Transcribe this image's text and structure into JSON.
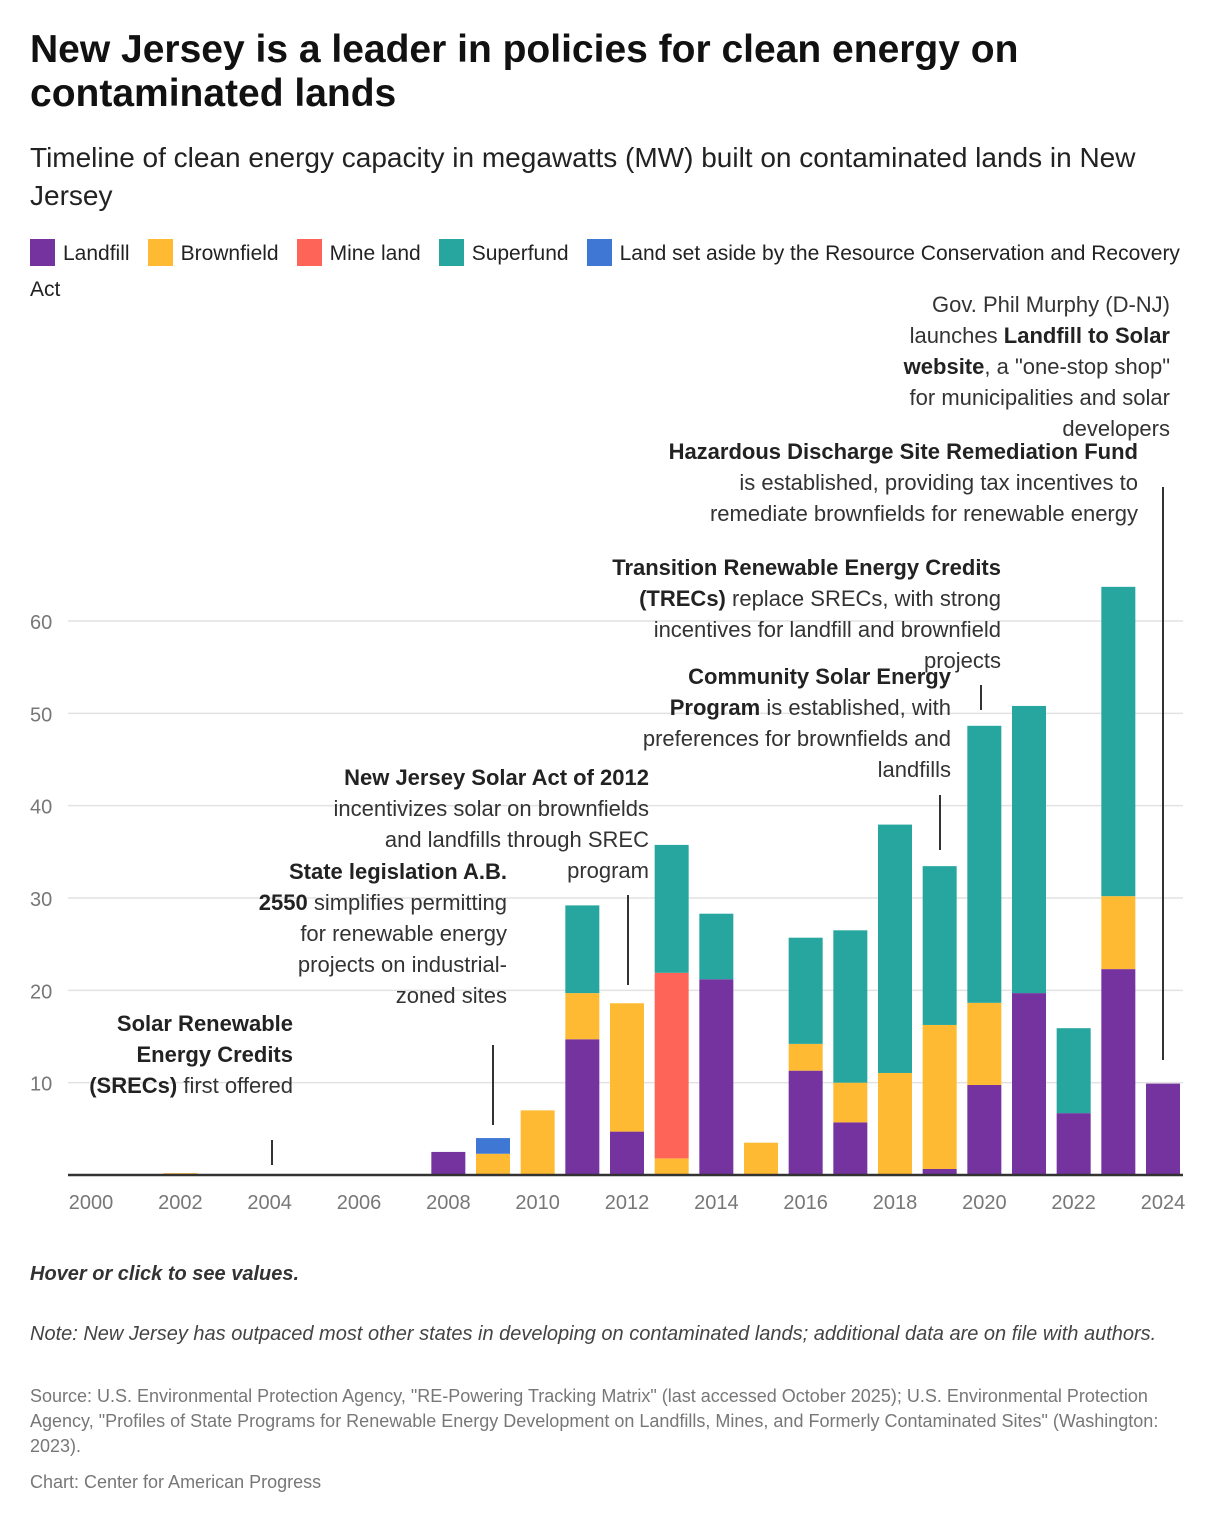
{
  "title": "New Jersey is a leader in policies for clean energy on contaminated lands",
  "subtitle": "Timeline of clean energy capacity in megawatts (MW) built on contaminated lands in New Jersey",
  "colors": {
    "Landfill": "#7533a0",
    "Brownfield": "#ffba33",
    "Mine land": "#ff6459",
    "Superfund": "#26a69e",
    "RCRA": "#3f78d4"
  },
  "legend": [
    {
      "label": "Landfill",
      "color": "#7533a0"
    },
    {
      "label": "Brownfield",
      "color": "#ffba33"
    },
    {
      "label": "Mine land",
      "color": "#ff6459"
    },
    {
      "label": "Superfund",
      "color": "#26a69e"
    },
    {
      "label": "Land set aside by the Resource Conservation and Recovery Act",
      "color": "#3f78d4"
    }
  ],
  "chart_data": {
    "type": "bar",
    "stacked": true,
    "categories": [
      2000,
      2001,
      2002,
      2003,
      2004,
      2005,
      2006,
      2007,
      2008,
      2009,
      2010,
      2011,
      2012,
      2013,
      2014,
      2015,
      2016,
      2017,
      2018,
      2019,
      2020,
      2021,
      2022,
      2023,
      2024
    ],
    "x_ticks": [
      "2000",
      "2002",
      "2004",
      "2006",
      "2008",
      "2010",
      "2012",
      "2014",
      "2016",
      "2018",
      "2020",
      "2022",
      "2024"
    ],
    "y_ticks": [
      "10",
      "20",
      "30",
      "40",
      "50",
      "60"
    ],
    "ylim": [
      0,
      66
    ],
    "grid": true,
    "legend_position": "top",
    "series": [
      {
        "name": "Landfill",
        "values": [
          0,
          0,
          0,
          0,
          0,
          0,
          0,
          0,
          2.5,
          0,
          0,
          14.7,
          4.7,
          0,
          21.2,
          0,
          11.3,
          5.7,
          0,
          0.65,
          9.75,
          19.7,
          6.7,
          22.3,
          9.9
        ]
      },
      {
        "name": "Brownfield",
        "values": [
          0,
          0,
          0.2,
          0,
          0,
          0,
          0,
          0,
          0,
          2.3,
          7.0,
          5.0,
          13.9,
          1.8,
          0,
          3.5,
          2.9,
          4.3,
          11.05,
          15.6,
          8.9,
          0,
          0,
          7.9,
          0
        ]
      },
      {
        "name": "Mine land",
        "values": [
          0,
          0,
          0,
          0,
          0,
          0,
          0,
          0,
          0,
          0,
          0,
          0,
          0,
          20.1,
          0,
          0,
          0,
          0,
          0,
          0,
          0,
          0,
          0,
          0,
          0
        ]
      },
      {
        "name": "Superfund",
        "values": [
          0,
          0,
          0,
          0,
          0,
          0,
          0,
          0,
          0,
          0,
          0,
          9.5,
          0,
          13.85,
          7.1,
          0,
          11.5,
          16.5,
          26.9,
          17.2,
          30.0,
          31.1,
          9.2,
          33.5,
          0
        ]
      },
      {
        "name": "Land set aside by the Resource Conservation and Recovery Act",
        "values": [
          0,
          0,
          0,
          0,
          0,
          0,
          0,
          0,
          0,
          1.7,
          0,
          0,
          0,
          0,
          0,
          0,
          0,
          0,
          0,
          0,
          0,
          0,
          0,
          0,
          0
        ]
      }
    ],
    "annotations": [
      {
        "year": 2004,
        "segments": [
          {
            "b": true,
            "t": "Solar Renewable Energy Credits (SRECs)"
          },
          {
            "b": false,
            "t": " first offered"
          }
        ]
      },
      {
        "year": 2009,
        "segments": [
          {
            "b": true,
            "t": "State legislation A.B. 2550"
          },
          {
            "b": false,
            "t": " simplifies permitting for renewable energy projects on industrial-zoned sites"
          }
        ]
      },
      {
        "year": 2012,
        "segments": [
          {
            "b": true,
            "t": "New Jersey Solar Act of 2012"
          },
          {
            "b": false,
            "t": " incentivizes solar on brownfields and landfills through SREC program"
          }
        ]
      },
      {
        "year": 2019,
        "segments": [
          {
            "b": true,
            "t": "Community Solar Energy Program"
          },
          {
            "b": false,
            "t": " is established, with preferences for brownfields and landfills"
          }
        ]
      },
      {
        "year": 2020,
        "segments": [
          {
            "b": true,
            "t": "Transition Renewable Energy Credits (TRECs)"
          },
          {
            "b": false,
            "t": " replace SRECs, with strong incentives for landfill and brownfield projects"
          }
        ]
      },
      {
        "year": 2023,
        "segments": [
          {
            "b": true,
            "t": "Hazardous Discharge Site Remediation Fund"
          },
          {
            "b": false,
            "t": " is established, providing tax incentives to remediate brownfields for renewable energy"
          }
        ]
      },
      {
        "year": 2024,
        "segments": [
          {
            "b": false,
            "t": "Gov. Phil Murphy (D-NJ) launches "
          },
          {
            "b": true,
            "t": "Landfill to Solar website"
          },
          {
            "b": false,
            "t": ", a \"one-stop shop\" for municipalities and solar developers"
          }
        ]
      }
    ]
  },
  "footer": {
    "hover": "Hover or click to see values.",
    "note": "Note: New Jersey has outpaced most other states in developing on contaminated lands; additional data are on file with authors.",
    "source": "Source: U.S. Environmental Protection Agency, \"RE-Powering Tracking Matrix\" (last accessed October 2025); U.S. Environmental Protection Agency, \"Profiles of State Programs for Renewable Energy Development on Landfills, Mines, and Formerly Contaminated Sites\" (Washington: 2023).",
    "credit": "Chart: Center for American Progress"
  }
}
